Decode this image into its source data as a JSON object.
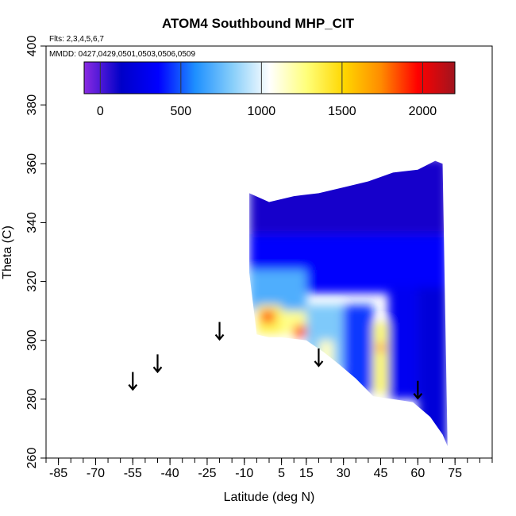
{
  "chart_data": {
    "type": "heatmap",
    "title": "ATOM4 Southbound MHP_CIT",
    "flights_note": "Flts: 2,3,4,5,6,7",
    "dates_note": "MMDD: 0427,0429,0501,0503,0506,0509",
    "xlabel": "Latitude (deg N)",
    "ylabel": "Theta (C)",
    "xlim": [
      -90,
      90
    ],
    "ylim": [
      260,
      400
    ],
    "x_ticks": [
      "-85",
      "-70",
      "-55",
      "-40",
      "-25",
      "-10",
      "5",
      "15",
      "30",
      "45",
      "60",
      "75"
    ],
    "x_tick_values": [
      -85,
      -70,
      -55,
      -40,
      -25,
      -10,
      5,
      15,
      30,
      45,
      60,
      75
    ],
    "x_minor_step": 5,
    "y_ticks": [
      "260",
      "280",
      "300",
      "320",
      "340",
      "360",
      "380",
      "400"
    ],
    "y_tick_values": [
      260,
      280,
      300,
      320,
      340,
      360,
      380,
      400
    ],
    "colorbar": {
      "range": [
        -100,
        2200
      ],
      "ticks": [
        "0",
        "500",
        "1000",
        "1500",
        "2000"
      ],
      "tick_values": [
        0,
        500,
        1000,
        1500,
        2000
      ],
      "colors": [
        "#8a2be2",
        "#0000c8",
        "#0000ff",
        "#1e90ff",
        "#87cefa",
        "#ffffff",
        "#ffff7a",
        "#ffd700",
        "#ff8c00",
        "#ff0000",
        "#a0141e"
      ]
    },
    "arrows_latitude": [
      -55,
      -45,
      -20,
      20,
      60
    ],
    "arrows_theta": [
      286,
      292,
      303,
      294,
      283
    ],
    "regions": {
      "top_boundary": [
        [
          -8,
          350
        ],
        [
          0,
          347
        ],
        [
          10,
          349
        ],
        [
          20,
          350
        ],
        [
          30,
          352
        ],
        [
          40,
          354
        ],
        [
          50,
          357
        ],
        [
          60,
          358
        ],
        [
          67,
          361
        ],
        [
          70,
          360
        ]
      ],
      "bottom_boundary": [
        [
          -8,
          323
        ],
        [
          -5,
          302
        ],
        [
          0,
          301
        ],
        [
          5,
          301
        ],
        [
          15,
          300
        ],
        [
          22,
          296
        ],
        [
          28,
          292
        ],
        [
          35,
          287
        ],
        [
          42,
          281
        ],
        [
          50,
          280
        ],
        [
          58,
          279
        ],
        [
          65,
          274
        ],
        [
          70,
          268
        ],
        [
          72,
          264
        ]
      ],
      "patches": [
        {
          "lat": [
            -8,
            72
          ],
          "theta": [
            336,
            362
          ],
          "value": 100
        },
        {
          "lat": [
            -8,
            72
          ],
          "theta": [
            316,
            336
          ],
          "value": 350
        },
        {
          "lat": [
            -8,
            15
          ],
          "theta": [
            310,
            324
          ],
          "value": 700
        },
        {
          "lat": [
            -5,
            5
          ],
          "theta": [
            302,
            312
          ],
          "value": 1350
        },
        {
          "lat": [
            5,
            15
          ],
          "theta": [
            302,
            310
          ],
          "value": 1250
        },
        {
          "lat": [
            -3,
            2
          ],
          "theta": [
            306,
            310
          ],
          "value": 1900
        },
        {
          "lat": [
            10,
            15
          ],
          "theta": [
            301,
            305
          ],
          "value": 1850
        },
        {
          "lat": [
            15,
            30
          ],
          "theta": [
            290,
            312
          ],
          "value": 800
        },
        {
          "lat": [
            20,
            26
          ],
          "theta": [
            288,
            300
          ],
          "value": 1150
        },
        {
          "lat": [
            30,
            42
          ],
          "theta": [
            282,
            312
          ],
          "value": 450
        },
        {
          "lat": [
            42,
            48
          ],
          "theta": [
            282,
            306
          ],
          "value": 1300
        },
        {
          "lat": [
            44,
            46
          ],
          "theta": [
            296,
            299
          ],
          "value": 1900
        },
        {
          "lat": [
            48,
            60
          ],
          "theta": [
            280,
            318
          ],
          "value": 300
        },
        {
          "lat": [
            60,
            72
          ],
          "theta": [
            264,
            318
          ],
          "value": 200
        }
      ]
    }
  }
}
